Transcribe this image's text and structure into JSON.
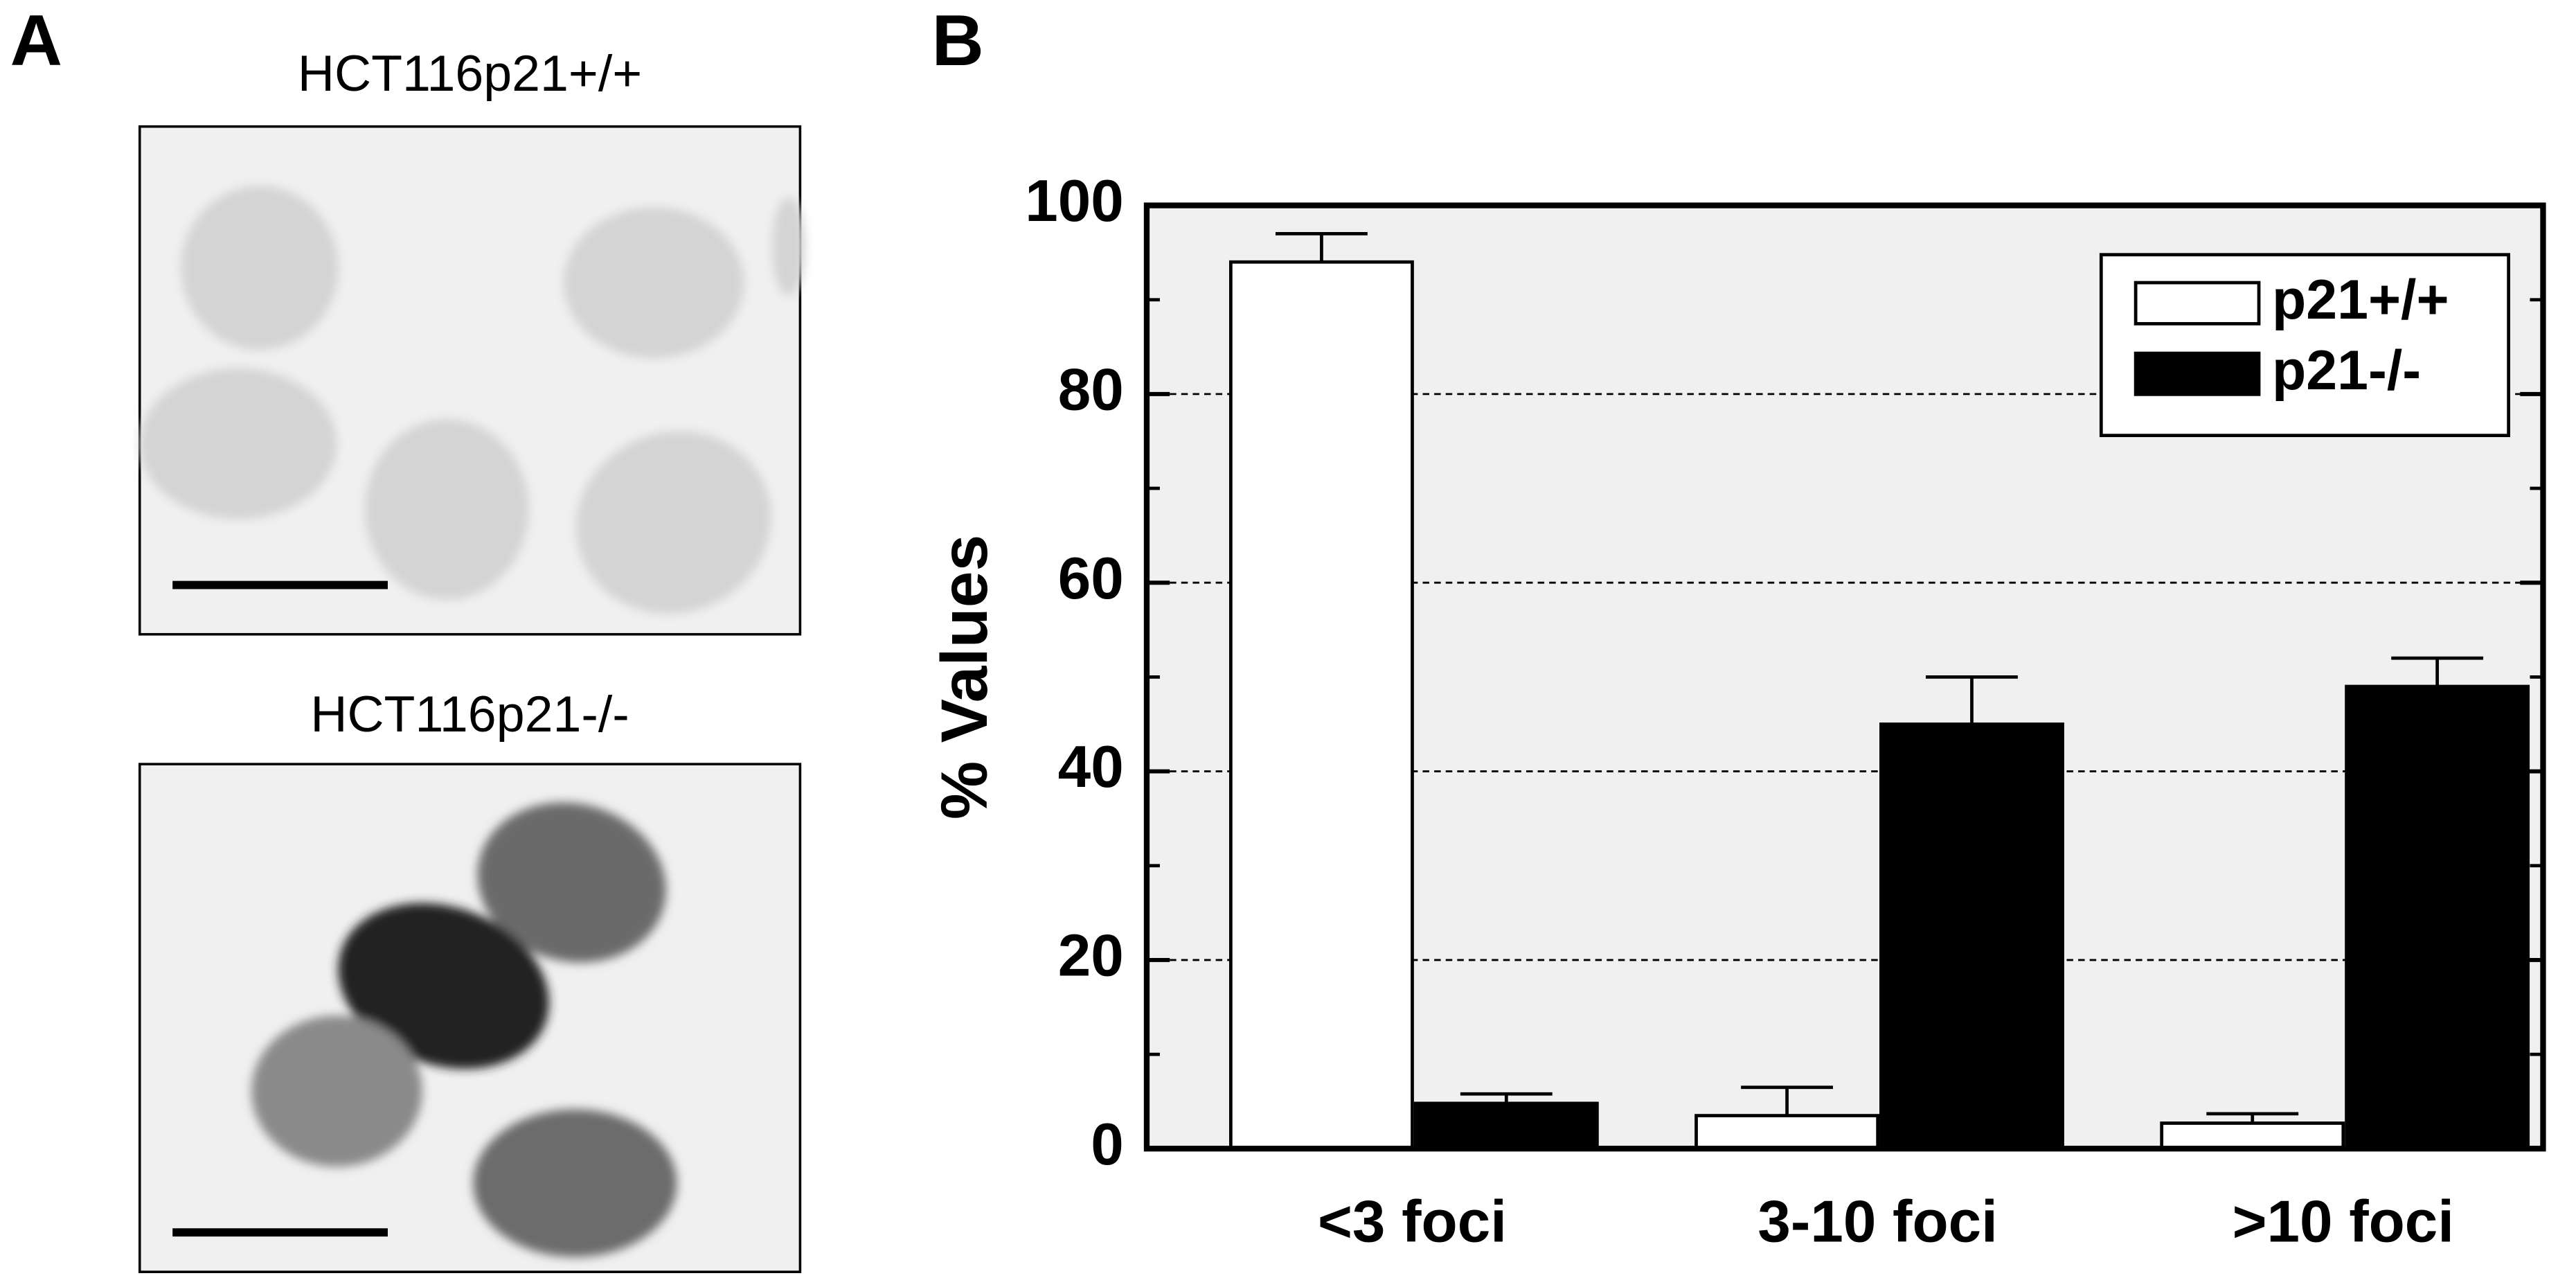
{
  "panel_a": {
    "label": "A",
    "images": [
      {
        "title": "HCT116p21+/+"
      },
      {
        "title": "HCT116p21-/-"
      }
    ]
  },
  "chart_data": {
    "type": "bar",
    "panel_label": "B",
    "y_label": "% Values",
    "categories": [
      "<3 foci",
      "3-10 foci",
      ">10 foci"
    ],
    "series": [
      {
        "name": "p21+/+",
        "color": "#ffffff",
        "values": [
          94,
          3.5,
          2.7
        ],
        "errors": [
          3,
          3,
          1
        ]
      },
      {
        "name": "p21-/-",
        "color": "#000000",
        "values": [
          4.8,
          45,
          49
        ],
        "errors": [
          1,
          5,
          3
        ]
      }
    ],
    "ylim": [
      0,
      100
    ],
    "yticks": [
      0,
      20,
      40,
      60,
      80,
      100
    ],
    "minor_yticks": [
      10,
      30,
      50,
      70,
      90
    ],
    "grid": true,
    "grid_style": "dashed",
    "plot_background": "#f0f0f0",
    "legend": "upper right"
  }
}
